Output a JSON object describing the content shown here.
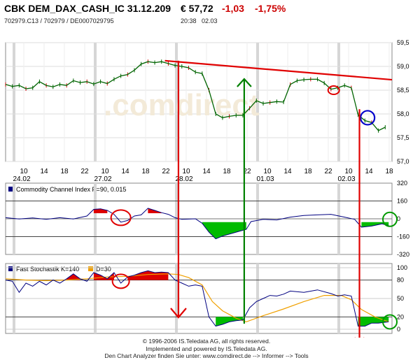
{
  "header": {
    "title": "CBK DEM_DAX_CASH_IC 31.12.209",
    "price": "€ 57,72",
    "change": "-1,03",
    "change_pct": "-1,75%",
    "ids": "702979.C13  /  702979  /  DE0007029795",
    "time": "20:38",
    "date": "02.03"
  },
  "colors": {
    "down": "#cc0000",
    "price_line": "#006400",
    "trend": "#e00000",
    "arrow_up": "#008000",
    "ind_pos": "#dd0000",
    "ind_neg": "#00bb00",
    "cci_line": "#000080",
    "stoch_k": "#000080",
    "stoch_d": "#f0a000"
  },
  "watermark": ".comdirect",
  "footer": {
    "line1": "© 1996-2006 IS.Teledata AG, all rights reserved.",
    "line2": "Implemented and powered by IS.Teledata AG.",
    "line3": "Den Chart Analyzer finden Sie unter: www.comdirect.de --> Informer --> Tools"
  },
  "chart_data": [
    {
      "type": "line",
      "name": "price",
      "ylim": [
        57.0,
        59.5
      ],
      "y_ticks": [
        "59,5",
        "59,0",
        "58,5",
        "58,0",
        "57,5",
        "57,0"
      ],
      "hour_ticks": [
        "10",
        "14",
        "18",
        "22",
        "10",
        "14",
        "18",
        "22",
        "10",
        "14",
        "18",
        "22",
        "10",
        "14",
        "18",
        "22",
        "10",
        "14",
        "18"
      ],
      "date_labels": [
        {
          "label": "24.02",
          "at": 0
        },
        {
          "label": "27.02",
          "at": 4
        },
        {
          "label": "28.02",
          "at": 8
        },
        {
          "label": "01.03",
          "at": 12
        },
        {
          "label": "02.03",
          "at": 16
        }
      ],
      "points": [
        [
          0,
          58.62
        ],
        [
          10,
          58.58
        ],
        [
          20,
          58.6
        ],
        [
          30,
          58.53
        ],
        [
          40,
          58.55
        ],
        [
          50,
          58.68
        ],
        [
          60,
          58.6
        ],
        [
          70,
          58.57
        ],
        [
          80,
          58.62
        ],
        [
          90,
          58.6
        ],
        [
          100,
          58.7
        ],
        [
          110,
          58.66
        ],
        [
          120,
          58.68
        ],
        [
          130,
          58.63
        ],
        [
          140,
          58.68
        ],
        [
          150,
          58.64
        ],
        [
          160,
          58.73
        ],
        [
          170,
          58.8
        ],
        [
          180,
          58.83
        ],
        [
          190,
          58.92
        ],
        [
          200,
          59.05
        ],
        [
          210,
          59.1
        ],
        [
          220,
          59.08
        ],
        [
          230,
          59.1
        ],
        [
          240,
          59.06
        ],
        [
          250,
          59.02
        ],
        [
          260,
          59.0
        ],
        [
          270,
          58.97
        ],
        [
          280,
          58.88
        ],
        [
          290,
          58.85
        ],
        [
          300,
          58.5
        ],
        [
          310,
          58.0
        ],
        [
          320,
          57.92
        ],
        [
          330,
          57.95
        ],
        [
          340,
          57.97
        ],
        [
          350,
          57.97
        ],
        [
          360,
          58.12
        ],
        [
          370,
          58.28
        ],
        [
          380,
          58.22
        ],
        [
          390,
          58.24
        ],
        [
          400,
          58.26
        ],
        [
          410,
          58.25
        ],
        [
          420,
          58.62
        ],
        [
          430,
          58.7
        ],
        [
          440,
          58.72
        ],
        [
          450,
          58.73
        ],
        [
          460,
          58.73
        ],
        [
          470,
          58.65
        ],
        [
          480,
          58.52
        ],
        [
          490,
          58.55
        ],
        [
          500,
          58.6
        ],
        [
          510,
          58.55
        ],
        [
          520,
          57.98
        ],
        [
          530,
          57.86
        ],
        [
          540,
          57.82
        ],
        [
          550,
          57.65
        ],
        [
          560,
          57.72
        ]
      ],
      "annotations": {
        "trendline": [
          [
            235,
            59.12
          ],
          [
            570,
            58.72
          ]
        ],
        "red_arrows_down": [
          [
            255,
            59.12
          ],
          [
            522,
            58.1
          ]
        ],
        "green_arrow_up": [
          [
            352,
            57.75
          ],
          [
            352,
            58.72
          ]
        ],
        "red_ellipse_price": [
          484,
          58.5
        ],
        "blue_circle": [
          534,
          57.92
        ]
      }
    },
    {
      "type": "area",
      "name": "Commodity Channel Index P=90, 0.015",
      "label": "Commodity Channel Index P=90, 0.015",
      "ylim": [
        -320,
        320
      ],
      "y_ticks": [
        "320",
        "160",
        "0",
        "-160",
        "-320"
      ],
      "points": [
        [
          0,
          10
        ],
        [
          20,
          -2
        ],
        [
          40,
          8
        ],
        [
          60,
          -5
        ],
        [
          80,
          10
        ],
        [
          100,
          -2
        ],
        [
          120,
          25
        ],
        [
          130,
          85
        ],
        [
          140,
          90
        ],
        [
          150,
          75
        ],
        [
          160,
          40
        ],
        [
          170,
          -30
        ],
        [
          180,
          -15
        ],
        [
          190,
          25
        ],
        [
          200,
          35
        ],
        [
          210,
          95
        ],
        [
          220,
          75
        ],
        [
          230,
          55
        ],
        [
          240,
          40
        ],
        [
          250,
          10
        ],
        [
          260,
          -5
        ],
        [
          280,
          0
        ],
        [
          290,
          -40
        ],
        [
          300,
          -120
        ],
        [
          310,
          -180
        ],
        [
          320,
          -155
        ],
        [
          340,
          -120
        ],
        [
          355,
          -95
        ],
        [
          362,
          -25
        ],
        [
          380,
          -5
        ],
        [
          400,
          -10
        ],
        [
          420,
          15
        ],
        [
          440,
          30
        ],
        [
          460,
          35
        ],
        [
          480,
          40
        ],
        [
          500,
          15
        ],
        [
          515,
          -5
        ],
        [
          525,
          -75
        ],
        [
          540,
          -65
        ],
        [
          555,
          -45
        ],
        [
          565,
          -60
        ]
      ]
    },
    {
      "type": "line",
      "name": "Fast Stochastik",
      "label_k": "Fast Stochastik K=140",
      "label_d": "D=30",
      "ylim": [
        0,
        100
      ],
      "y_ticks": [
        "100",
        "80",
        "50",
        "20",
        "0"
      ],
      "k_points": [
        [
          0,
          80
        ],
        [
          10,
          78
        ],
        [
          20,
          60
        ],
        [
          30,
          75
        ],
        [
          40,
          70
        ],
        [
          50,
          78
        ],
        [
          60,
          72
        ],
        [
          70,
          80
        ],
        [
          80,
          75
        ],
        [
          90,
          82
        ],
        [
          100,
          90
        ],
        [
          110,
          82
        ],
        [
          120,
          78
        ],
        [
          130,
          92
        ],
        [
          140,
          88
        ],
        [
          150,
          82
        ],
        [
          160,
          92
        ],
        [
          170,
          75
        ],
        [
          180,
          85
        ],
        [
          190,
          88
        ],
        [
          200,
          92
        ],
        [
          210,
          95
        ],
        [
          220,
          92
        ],
        [
          230,
          93
        ],
        [
          240,
          92
        ],
        [
          250,
          80
        ],
        [
          260,
          75
        ],
        [
          270,
          70
        ],
        [
          280,
          72
        ],
        [
          290,
          70
        ],
        [
          300,
          20
        ],
        [
          310,
          5
        ],
        [
          320,
          8
        ],
        [
          330,
          12
        ],
        [
          340,
          14
        ],
        [
          350,
          15
        ],
        [
          360,
          35
        ],
        [
          370,
          45
        ],
        [
          380,
          50
        ],
        [
          390,
          55
        ],
        [
          400,
          54
        ],
        [
          410,
          57
        ],
        [
          420,
          62
        ],
        [
          440,
          60
        ],
        [
          460,
          64
        ],
        [
          480,
          58
        ],
        [
          490,
          54
        ],
        [
          500,
          56
        ],
        [
          510,
          54
        ],
        [
          520,
          5
        ],
        [
          530,
          5
        ],
        [
          540,
          10
        ],
        [
          550,
          10
        ],
        [
          565,
          12
        ]
      ],
      "d_points": [
        [
          0,
          82
        ],
        [
          30,
          80
        ],
        [
          60,
          79
        ],
        [
          90,
          80
        ],
        [
          120,
          82
        ],
        [
          150,
          85
        ],
        [
          180,
          86
        ],
        [
          210,
          89
        ],
        [
          240,
          90
        ],
        [
          255,
          89
        ],
        [
          270,
          84
        ],
        [
          290,
          72
        ],
        [
          305,
          45
        ],
        [
          320,
          30
        ],
        [
          340,
          18
        ],
        [
          355,
          12
        ],
        [
          380,
          22
        ],
        [
          410,
          33
        ],
        [
          440,
          45
        ],
        [
          470,
          55
        ],
        [
          495,
          55
        ],
        [
          510,
          48
        ],
        [
          525,
          32
        ],
        [
          545,
          20
        ],
        [
          565,
          12
        ]
      ]
    }
  ]
}
